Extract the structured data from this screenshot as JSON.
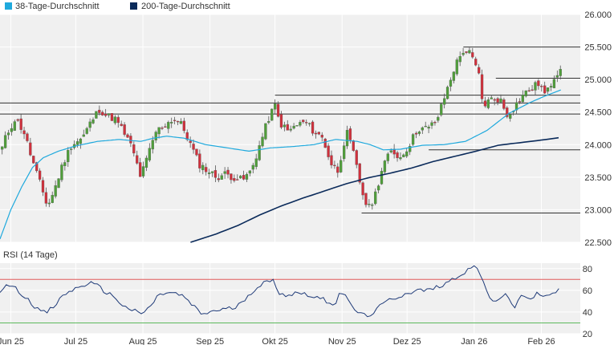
{
  "colors": {
    "panel_bg": "#f0f0f0",
    "grid": "#ffffff",
    "candle_up": "#4f9e3a",
    "candle_down": "#d0303c",
    "ma38": "#1fa9dd",
    "ma200": "#0a2a5a",
    "rsi_line": "#1e3a78",
    "rsi_upper": "#e05a5a",
    "rsi_lower": "#5cb85c",
    "level_line": "#333333",
    "text": "#333333"
  },
  "chart_data": [
    {
      "type": "candlestick",
      "legend": [
        {
          "name": "38-Tage-Durchschnitt",
          "color": "#1fa9dd"
        },
        {
          "name": "200-Tage-Durchschnitt",
          "color": "#0a2a5a"
        }
      ],
      "legend_position": "top-left",
      "grid": true,
      "ylim": [
        22500,
        26000
      ],
      "y_ticks": [
        "22.500",
        "23.000",
        "23.500",
        "24.000",
        "24.500",
        "25.000",
        "25.500",
        "26.000"
      ],
      "y_tick_values": [
        22500,
        23000,
        23500,
        24000,
        24500,
        25000,
        25500,
        26000
      ],
      "x_labels": [
        "Jun 25",
        "Jul 25",
        "Aug 25",
        "Sep 25",
        "Okt 25",
        "Nov 25",
        "Dez 25",
        "Jan 26",
        "Feb 26"
      ],
      "x_label_days": [
        0,
        30,
        61,
        92,
        122,
        153,
        183,
        214,
        245
      ],
      "x_range_days": [
        -5,
        263
      ],
      "anchors": {
        "close": [
          [
            -5,
            23850
          ],
          [
            -2,
            24150
          ],
          [
            2,
            24400
          ],
          [
            6,
            24200
          ],
          [
            10,
            23750
          ],
          [
            14,
            23350
          ],
          [
            17,
            23050
          ],
          [
            20,
            23300
          ],
          [
            24,
            23700
          ],
          [
            28,
            24000
          ],
          [
            33,
            24100
          ],
          [
            37,
            24350
          ],
          [
            41,
            24550
          ],
          [
            44,
            24450
          ],
          [
            48,
            24400
          ],
          [
            52,
            24200
          ],
          [
            56,
            23950
          ],
          [
            60,
            23500
          ],
          [
            63,
            23800
          ],
          [
            67,
            24200
          ],
          [
            71,
            24300
          ],
          [
            75,
            24400
          ],
          [
            79,
            24300
          ],
          [
            83,
            24000
          ],
          [
            87,
            23700
          ],
          [
            91,
            23600
          ],
          [
            95,
            23500
          ],
          [
            99,
            23550
          ],
          [
            103,
            23500
          ],
          [
            107,
            23450
          ],
          [
            111,
            23600
          ],
          [
            115,
            24000
          ],
          [
            119,
            24400
          ],
          [
            122,
            24600
          ],
          [
            124,
            24350
          ],
          [
            128,
            24200
          ],
          [
            132,
            24300
          ],
          [
            136,
            24350
          ],
          [
            140,
            24200
          ],
          [
            144,
            24100
          ],
          [
            148,
            23700
          ],
          [
            151,
            23600
          ],
          [
            155,
            24200
          ],
          [
            158,
            23900
          ],
          [
            162,
            23300
          ],
          [
            165,
            23000
          ],
          [
            168,
            23200
          ],
          [
            172,
            23700
          ],
          [
            176,
            23900
          ],
          [
            180,
            23800
          ],
          [
            184,
            24000
          ],
          [
            188,
            24250
          ],
          [
            193,
            24250
          ],
          [
            197,
            24400
          ],
          [
            201,
            24800
          ],
          [
            205,
            25200
          ],
          [
            209,
            25450
          ],
          [
            212,
            25400
          ],
          [
            216,
            25100
          ],
          [
            218,
            24600
          ],
          [
            222,
            24700
          ],
          [
            226,
            24700
          ],
          [
            229,
            24450
          ],
          [
            233,
            24600
          ],
          [
            236,
            24750
          ],
          [
            240,
            24850
          ],
          [
            244,
            24950
          ],
          [
            247,
            24750
          ],
          [
            251,
            25050
          ],
          [
            254,
            25200
          ]
        ],
        "ma38": [
          [
            -5,
            22550
          ],
          [
            0,
            23000
          ],
          [
            5,
            23350
          ],
          [
            10,
            23650
          ],
          [
            15,
            23800
          ],
          [
            22,
            23900
          ],
          [
            30,
            23980
          ],
          [
            40,
            24050
          ],
          [
            50,
            24080
          ],
          [
            60,
            24050
          ],
          [
            66,
            24100
          ],
          [
            72,
            24130
          ],
          [
            80,
            24100
          ],
          [
            90,
            24000
          ],
          [
            100,
            23950
          ],
          [
            110,
            23900
          ],
          [
            120,
            23950
          ],
          [
            130,
            23970
          ],
          [
            140,
            24000
          ],
          [
            150,
            24080
          ],
          [
            160,
            24050
          ],
          [
            166,
            24000
          ],
          [
            172,
            23920
          ],
          [
            180,
            23930
          ],
          [
            190,
            23990
          ],
          [
            200,
            24000
          ],
          [
            210,
            24050
          ],
          [
            220,
            24220
          ],
          [
            230,
            24480
          ],
          [
            240,
            24650
          ],
          [
            247,
            24750
          ],
          [
            254,
            24840
          ]
        ],
        "ma200": [
          [
            83,
            22500
          ],
          [
            95,
            22630
          ],
          [
            105,
            22760
          ],
          [
            115,
            22920
          ],
          [
            125,
            23060
          ],
          [
            135,
            23180
          ],
          [
            145,
            23290
          ],
          [
            155,
            23400
          ],
          [
            165,
            23490
          ],
          [
            175,
            23560
          ],
          [
            185,
            23640
          ],
          [
            195,
            23740
          ],
          [
            205,
            23820
          ],
          [
            215,
            23900
          ],
          [
            225,
            23990
          ],
          [
            235,
            24030
          ],
          [
            245,
            24070
          ],
          [
            254,
            24110
          ]
        ]
      },
      "horizontal_levels": [
        {
          "value": 25500,
          "from_day": 209,
          "to_day": 263
        },
        {
          "value": 25020,
          "from_day": 224,
          "to_day": 263
        },
        {
          "value": 24760,
          "from_day": 122,
          "to_day": 263
        },
        {
          "value": 24640,
          "from_day": -5,
          "to_day": 263
        },
        {
          "value": 24470,
          "from_day": -5,
          "to_day": 263
        },
        {
          "value": 23920,
          "from_day": 193,
          "to_day": 263
        },
        {
          "value": 22950,
          "from_day": 162,
          "to_day": 263
        }
      ]
    },
    {
      "type": "line",
      "title": "RSI (14 Tage)",
      "ylim": [
        20,
        85
      ],
      "y_ticks": [
        "20",
        "40",
        "60",
        "80"
      ],
      "y_tick_values": [
        20,
        40,
        60,
        80
      ],
      "upper_band": 70,
      "lower_band": 30,
      "anchors": [
        [
          -5,
          60
        ],
        [
          0,
          66
        ],
        [
          4,
          58
        ],
        [
          8,
          52
        ],
        [
          12,
          43
        ],
        [
          16,
          39
        ],
        [
          20,
          45
        ],
        [
          24,
          55
        ],
        [
          28,
          60
        ],
        [
          32,
          63
        ],
        [
          36,
          67
        ],
        [
          40,
          64
        ],
        [
          44,
          58
        ],
        [
          48,
          54
        ],
        [
          52,
          45
        ],
        [
          56,
          42
        ],
        [
          60,
          38
        ],
        [
          64,
          44
        ],
        [
          68,
          55
        ],
        [
          72,
          58
        ],
        [
          76,
          57
        ],
        [
          80,
          54
        ],
        [
          84,
          46
        ],
        [
          88,
          38
        ],
        [
          92,
          40
        ],
        [
          96,
          42
        ],
        [
          100,
          43
        ],
        [
          104,
          44
        ],
        [
          108,
          52
        ],
        [
          112,
          60
        ],
        [
          116,
          66
        ],
        [
          119,
          68
        ],
        [
          121,
          69
        ],
        [
          124,
          58
        ],
        [
          128,
          55
        ],
        [
          132,
          58
        ],
        [
          136,
          57
        ],
        [
          140,
          54
        ],
        [
          144,
          52
        ],
        [
          148,
          48
        ],
        [
          150,
          48
        ],
        [
          152,
          60
        ],
        [
          154,
          56
        ],
        [
          156,
          49
        ],
        [
          160,
          40
        ],
        [
          164,
          36
        ],
        [
          168,
          40
        ],
        [
          172,
          48
        ],
        [
          176,
          52
        ],
        [
          180,
          55
        ],
        [
          184,
          58
        ],
        [
          188,
          60
        ],
        [
          192,
          60
        ],
        [
          196,
          62
        ],
        [
          200,
          66
        ],
        [
          204,
          70
        ],
        [
          208,
          75
        ],
        [
          212,
          80
        ],
        [
          214,
          82
        ],
        [
          216,
          79
        ],
        [
          218,
          70
        ],
        [
          220,
          56
        ],
        [
          223,
          48
        ],
        [
          226,
          54
        ],
        [
          229,
          58
        ],
        [
          232,
          42
        ],
        [
          236,
          56
        ],
        [
          240,
          52
        ],
        [
          244,
          58
        ],
        [
          247,
          54
        ],
        [
          250,
          56
        ],
        [
          254,
          62
        ]
      ]
    }
  ]
}
